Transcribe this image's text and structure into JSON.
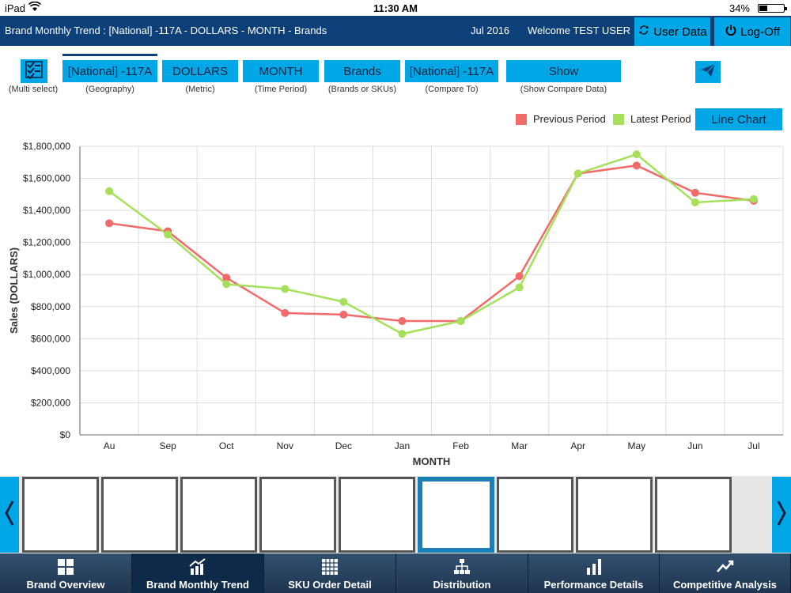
{
  "status_bar": {
    "device": "iPad",
    "time": "11:30 AM",
    "battery": "34%",
    "battery_level": 0.34
  },
  "header": {
    "title": "Brand Monthly Trend : [National] -117A - DOLLARS - MONTH - Brands",
    "month": "Jul 2016",
    "welcome": "Welcome TEST USER",
    "user_data_label": "User Data",
    "logoff_label": "Log-Off"
  },
  "filters": {
    "multi_select_caption": "(Multi select)",
    "items": [
      {
        "label": "[National] -117A",
        "caption": "(Geography)"
      },
      {
        "label": "DOLLARS",
        "caption": "(Metric)"
      },
      {
        "label": "MONTH",
        "caption": "(Time Period)"
      },
      {
        "label": "Brands",
        "caption": "(Brands or SKUs)"
      },
      {
        "label": "[National] -117A",
        "caption": "(Compare To)"
      },
      {
        "label": "Show",
        "caption": "(Show Compare Data)"
      }
    ]
  },
  "legend": {
    "previous": "Previous Period",
    "latest": "Latest Period",
    "line_chart_button": "Line Chart"
  },
  "colors": {
    "previous": "#f26b6b",
    "latest": "#a6e05a",
    "accent": "#00a7e6",
    "header": "#0d3f78"
  },
  "chart_data": {
    "type": "line",
    "categories": [
      "Au",
      "Sep",
      "Oct",
      "Nov",
      "Dec",
      "Jan",
      "Feb",
      "Mar",
      "Apr",
      "May",
      "Jun",
      "Jul"
    ],
    "series": [
      {
        "name": "Previous Period",
        "values": [
          1320000,
          1270000,
          980000,
          760000,
          750000,
          710000,
          710000,
          990000,
          1630000,
          1680000,
          1510000,
          1460000
        ]
      },
      {
        "name": "Latest Period",
        "values": [
          1520000,
          1250000,
          940000,
          910000,
          830000,
          630000,
          710000,
          920000,
          1630000,
          1750000,
          1450000,
          1470000
        ]
      }
    ],
    "xlabel": "MONTH",
    "ylabel": "Sales (DOLLARS)",
    "ylim": [
      0,
      1800000
    ],
    "yticks": [
      "$0",
      "$200,000",
      "$400,000",
      "$600,000",
      "$800,000",
      "$1,000,000",
      "$1,200,000",
      "$1,400,000",
      "$1,600,000",
      "$1,800,000"
    ],
    "grid": true,
    "legend_position": "top-right"
  },
  "thumbnails": {
    "count": 9,
    "active_index": 5
  },
  "tabs": [
    {
      "label": "Brand Overview",
      "icon": "grid-icon"
    },
    {
      "label": "Brand Monthly Trend",
      "icon": "trend-bars-icon",
      "active": true
    },
    {
      "label": "SKU Order Detail",
      "icon": "table-icon"
    },
    {
      "label": "Distribution",
      "icon": "hierarchy-icon"
    },
    {
      "label": "Performance Details",
      "icon": "bar-chart-icon"
    },
    {
      "label": "Competitive Analysis",
      "icon": "trend-line-icon"
    }
  ]
}
